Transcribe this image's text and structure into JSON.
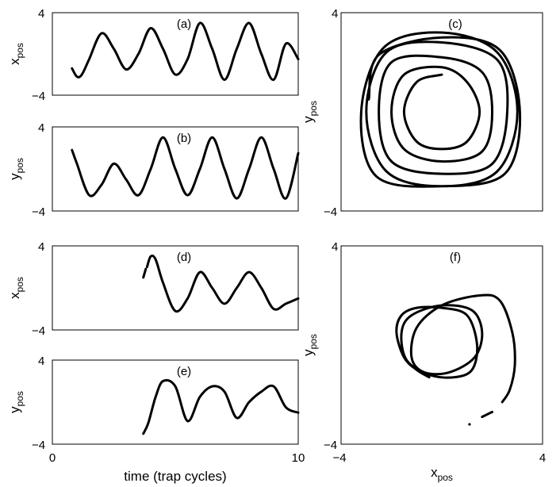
{
  "chart_data": [
    {
      "id": "a",
      "type": "line",
      "panel_label": "(a)",
      "ylabel": "x",
      "ylabel_sub": "pos",
      "xlim": [
        0,
        10
      ],
      "ylim": [
        -4,
        4
      ],
      "yticklabels": [
        "4",
        "−4"
      ],
      "xticklabels": [],
      "series": [
        {
          "x": [
            0.8,
            1.0,
            1.2,
            1.5,
            2.0,
            2.5,
            3.0,
            3.5,
            4.0,
            4.5,
            5.0,
            5.5,
            6.0,
            6.5,
            7.0,
            7.5,
            8.0,
            8.5,
            9.0,
            9.5,
            10.0
          ],
          "y": [
            -1.4,
            -2.2,
            -2.0,
            -0.5,
            2.0,
            0.5,
            -1.5,
            0.0,
            2.5,
            0.5,
            -2.0,
            -0.5,
            3.0,
            0.5,
            -2.5,
            0.5,
            3.0,
            0.0,
            -2.5,
            1.0,
            -0.5
          ]
        }
      ]
    },
    {
      "id": "b",
      "type": "line",
      "panel_label": "(b)",
      "ylabel": "y",
      "ylabel_sub": "pos",
      "xlim": [
        0,
        10
      ],
      "ylim": [
        -4,
        4
      ],
      "yticklabels": [
        "4",
        "−4"
      ],
      "xticklabels": [],
      "series": [
        {
          "x": [
            0.8,
            1.0,
            1.5,
            2.0,
            2.5,
            3.0,
            3.5,
            4.0,
            4.5,
            5.0,
            5.5,
            6.0,
            6.5,
            7.0,
            7.5,
            8.0,
            8.5,
            9.0,
            9.5,
            10.0
          ],
          "y": [
            1.8,
            0.5,
            -2.5,
            -1.5,
            0.5,
            -1.0,
            -2.5,
            0.0,
            3.0,
            0.0,
            -2.5,
            0.0,
            3.0,
            0.0,
            -2.8,
            0.0,
            3.0,
            0.0,
            -2.8,
            1.5
          ]
        }
      ]
    },
    {
      "id": "c",
      "type": "line",
      "panel_label": "(c)",
      "ylabel": "y",
      "ylabel_sub": "pos",
      "xlim": [
        -4,
        4
      ],
      "ylim": [
        -4,
        4
      ],
      "yticklabels": [
        "4",
        "−4"
      ],
      "xticklabels": [],
      "series": [
        {
          "x": [
            0.0,
            -1.0,
            -1.5,
            -1.0,
            0.0,
            1.0,
            1.5,
            1.0,
            0.0,
            -1.5,
            -2.0,
            -1.5,
            0.0,
            1.6,
            2.0,
            1.6,
            0.0,
            -2.0,
            -2.5,
            -2.0,
            0.0,
            2.0,
            2.6,
            2.2,
            0.0,
            -2.2,
            -3.0,
            -2.2,
            0.0,
            2.2,
            3.0,
            2.2,
            0.0,
            -2.3,
            -3.2,
            -2.6,
            0.0,
            2.5,
            3.1,
            2.3,
            0.0,
            -2.5,
            -2.9
          ],
          "y": [
            1.5,
            1.2,
            0.0,
            -1.2,
            -1.5,
            -1.2,
            0.0,
            1.2,
            1.8,
            1.5,
            0.0,
            -1.5,
            -2.0,
            -1.6,
            0.0,
            1.6,
            2.2,
            2.0,
            0.0,
            -2.0,
            -2.5,
            -2.1,
            0.0,
            2.1,
            2.8,
            2.4,
            0.0,
            -2.4,
            -3.0,
            -2.4,
            0.0,
            2.4,
            3.2,
            2.6,
            0.0,
            -2.6,
            -3.0,
            -2.5,
            0.0,
            2.5,
            3.0,
            2.3,
            0.5
          ]
        }
      ]
    },
    {
      "id": "d",
      "type": "line",
      "panel_label": "(d)",
      "ylabel": "x",
      "ylabel_sub": "pos",
      "xlim": [
        0,
        10
      ],
      "ylim": [
        -4,
        4
      ],
      "yticklabels": [
        "4",
        "−4"
      ],
      "xticklabels": [],
      "series": [
        {
          "x": [
            3.85,
            4.0,
            4.2,
            4.5,
            5.0,
            5.5,
            6.0,
            6.5,
            7.0,
            7.5,
            8.0,
            8.5,
            9.0,
            9.5,
            10.0
          ],
          "y": [
            2.0,
            3.0,
            2.7,
            0.5,
            -2.2,
            -1.0,
            1.5,
            0.0,
            -1.5,
            0.0,
            1.5,
            0.0,
            -2.0,
            -1.5,
            -1.0
          ]
        },
        {
          "x": [
            3.7,
            3.75,
            3.8
          ],
          "y": [
            1.0,
            1.4,
            1.8
          ]
        }
      ]
    },
    {
      "id": "e",
      "type": "line",
      "panel_label": "(e)",
      "ylabel": "y",
      "ylabel_sub": "pos",
      "xlim": [
        0,
        10
      ],
      "ylim": [
        -4,
        4
      ],
      "yticklabels": [
        "4",
        "−4"
      ],
      "xticklabels": [
        "0",
        "10"
      ],
      "xlabel": "time (trap cycles)",
      "series": [
        {
          "x": [
            3.7,
            3.9,
            4.2,
            4.5,
            5.0,
            5.5,
            6.0,
            6.5,
            7.0,
            7.5,
            8.0,
            8.5,
            9.0,
            9.5,
            10.0
          ],
          "y": [
            -3.0,
            -2.0,
            0.5,
            2.0,
            1.5,
            -1.8,
            0.5,
            1.5,
            1.0,
            -1.5,
            0.0,
            1.0,
            1.5,
            -0.5,
            -1.0
          ]
        }
      ]
    },
    {
      "id": "f",
      "type": "line",
      "panel_label": "(f)",
      "ylabel": "y",
      "ylabel_sub": "pos",
      "xlabel": "x",
      "xlabel_sub": "pos",
      "xlim": [
        -4,
        4
      ],
      "ylim": [
        -4,
        4
      ],
      "yticklabels": [
        "4",
        "−4"
      ],
      "xticklabels": [
        "−4",
        "4"
      ],
      "series": [
        {
          "x": [
            -0.5,
            -1.0,
            -1.5,
            -1.8,
            -1.6,
            -1.0,
            0.0,
            1.0,
            1.4,
            1.2,
            0.5,
            -0.5,
            -1.4,
            -1.6,
            -1.2,
            0.0,
            1.2,
            1.6,
            1.3,
            0.3,
            -0.7,
            -1.2,
            -1.0,
            0.0,
            1.5,
            2.3,
            2.8,
            2.9,
            2.7,
            2.4
          ],
          "y": [
            -1.3,
            -1.0,
            -0.5,
            0.5,
            1.2,
            1.5,
            1.5,
            1.2,
            0.0,
            -1.0,
            -1.3,
            -1.2,
            -0.6,
            0.5,
            1.2,
            1.6,
            1.4,
            0.5,
            -0.5,
            -1.1,
            -1.1,
            -0.5,
            0.7,
            1.6,
            2.0,
            1.8,
            0.5,
            -0.8,
            -1.8,
            -2.3
          ]
        },
        {
          "x": [
            2.0,
            1.8,
            1.6
          ],
          "y": [
            -2.7,
            -2.8,
            -2.9
          ]
        },
        {
          "x": [
            1.1
          ],
          "y": [
            -3.2
          ]
        }
      ]
    }
  ]
}
